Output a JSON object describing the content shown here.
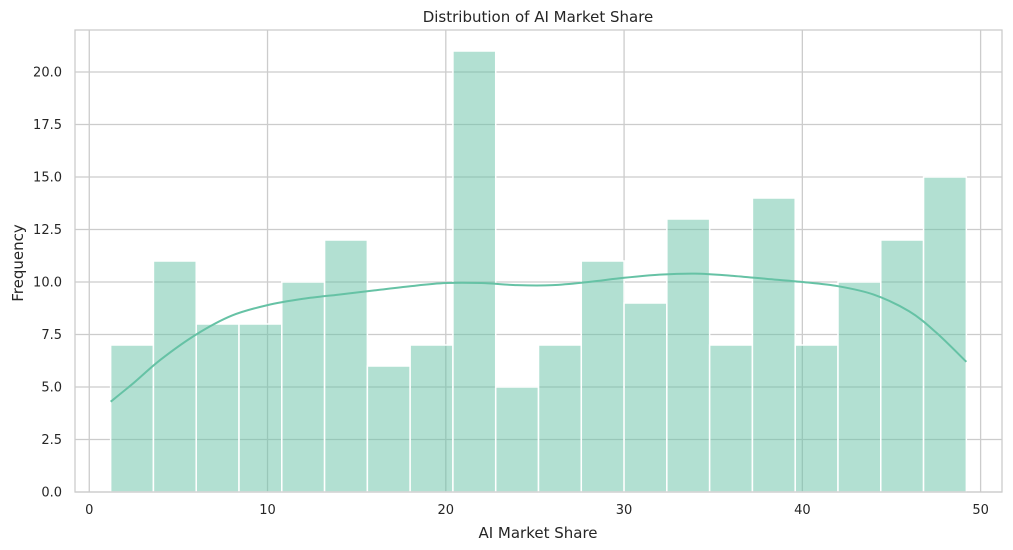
{
  "chart_data": {
    "type": "bar",
    "title": "Distribution of AI Market Share",
    "xlabel": "AI Market Share",
    "ylabel": "Frequency",
    "xlim": [
      -0.8,
      51.2
    ],
    "ylim": [
      0,
      22
    ],
    "xticks": [
      0,
      10,
      20,
      30,
      40,
      50
    ],
    "xtick_labels": [
      "0",
      "10",
      "20",
      "30",
      "40",
      "50"
    ],
    "yticks": [
      0,
      2.5,
      5,
      7.5,
      10,
      12.5,
      15,
      17.5,
      20
    ],
    "ytick_labels": [
      "0.0",
      "2.5",
      "5.0",
      "7.5",
      "10.0",
      "12.5",
      "15.0",
      "17.5",
      "20.0"
    ],
    "grid": true,
    "bin_edges": [
      1.2,
      3.6,
      6.0,
      8.4,
      10.8,
      13.2,
      15.6,
      18.0,
      20.4,
      22.8,
      25.2,
      27.6,
      30.0,
      32.4,
      34.8,
      37.2,
      39.6,
      42.0,
      44.4,
      46.8,
      49.2
    ],
    "counts": [
      7,
      11,
      8,
      8,
      10,
      12,
      6,
      7,
      21,
      5,
      7,
      11,
      9,
      13,
      7,
      14,
      7,
      10,
      12,
      15
    ],
    "kde": {
      "x": [
        1.2,
        2.5,
        4,
        6,
        8,
        10,
        12,
        14,
        16,
        18,
        20,
        22,
        24,
        26,
        28,
        30,
        32,
        34,
        36,
        38,
        40,
        42,
        44,
        46,
        47.5,
        49.2
      ],
      "y": [
        4.3,
        5.2,
        6.3,
        7.5,
        8.4,
        8.9,
        9.2,
        9.4,
        9.6,
        9.8,
        9.95,
        9.95,
        9.85,
        9.85,
        10.0,
        10.2,
        10.35,
        10.4,
        10.3,
        10.15,
        10.0,
        9.8,
        9.4,
        8.6,
        7.6,
        6.2
      ]
    },
    "colors": {
      "bar_fill": "#66c2a5",
      "bar_opacity": 0.5,
      "bar_edge": "#ffffff",
      "kde_line": "#66c2a5",
      "grid": "#cccccc",
      "spine": "#cccccc"
    }
  }
}
